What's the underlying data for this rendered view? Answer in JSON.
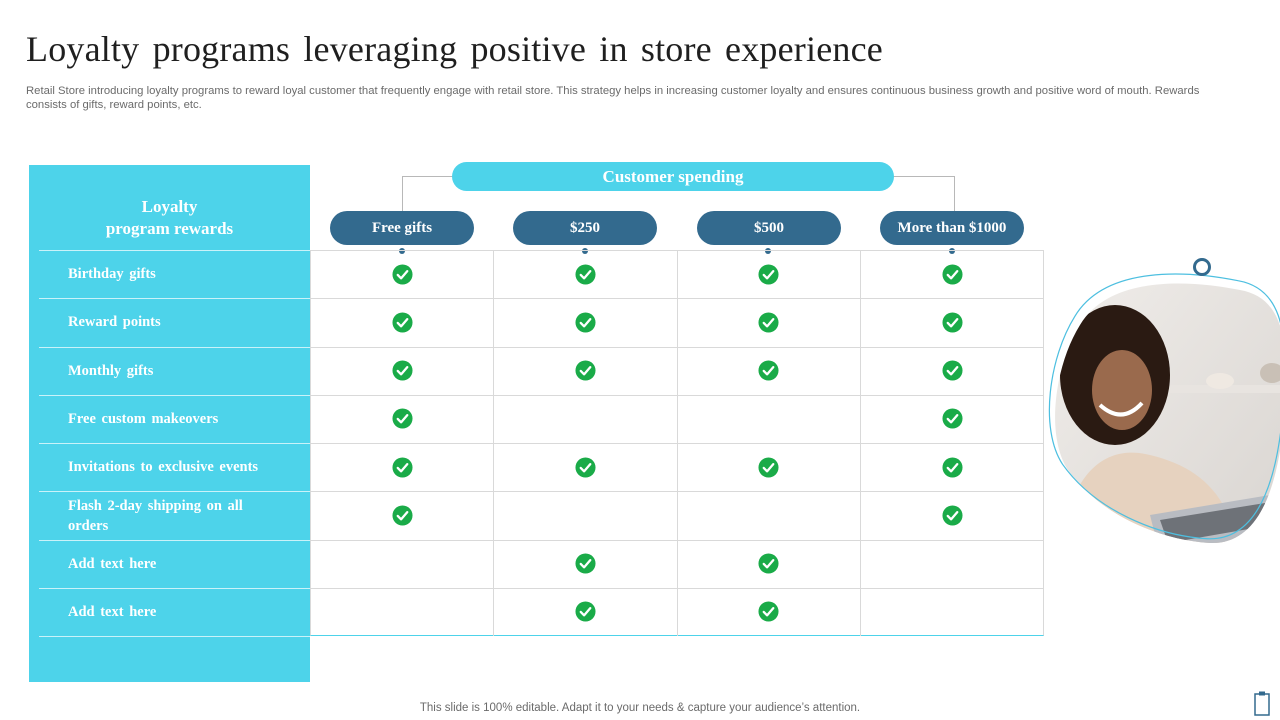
{
  "title": "Loyalty programs leveraging positive in store experience",
  "subtitle": "Retail Store introducing loyalty programs to reward loyal customer that frequently engage with retail store. This strategy helps in increasing customer loyalty and ensures continuous business growth and positive word of mouth. Rewards consists of gifts, reward points, etc.",
  "panel": {
    "heading_line1": "Loyalty",
    "heading_line2": "program rewards"
  },
  "spending": {
    "label": "Customer spending",
    "columns": [
      "Free gifts",
      "$250",
      "$500",
      "More than $1000"
    ]
  },
  "rows": [
    {
      "label": "Birthday  gifts",
      "checks": [
        true,
        true,
        true,
        true
      ]
    },
    {
      "label": "Reward  points",
      "checks": [
        true,
        true,
        true,
        true
      ]
    },
    {
      "label": "Monthly  gifts",
      "checks": [
        true,
        true,
        true,
        true
      ]
    },
    {
      "label": "Free custom  makeovers",
      "checks": [
        true,
        false,
        false,
        true
      ]
    },
    {
      "label": "Invitations  to exclusive events",
      "checks": [
        true,
        true,
        true,
        true
      ]
    },
    {
      "label": "Flash 2-day  shipping  on all orders",
      "checks": [
        true,
        false,
        false,
        true
      ]
    },
    {
      "label": "Add text here",
      "checks": [
        false,
        true,
        true,
        false
      ]
    },
    {
      "label": "Add text here",
      "checks": [
        false,
        true,
        true,
        false
      ]
    }
  ],
  "footer": "This slide is 100% editable. Adapt it to your needs & capture your audience’s attention.",
  "colors": {
    "accent": "#4dd3ea",
    "pill": "#336a8e",
    "check": "#1aab48"
  },
  "icons": {
    "check": "check-circle-icon",
    "corner": "clipboard-icon"
  }
}
